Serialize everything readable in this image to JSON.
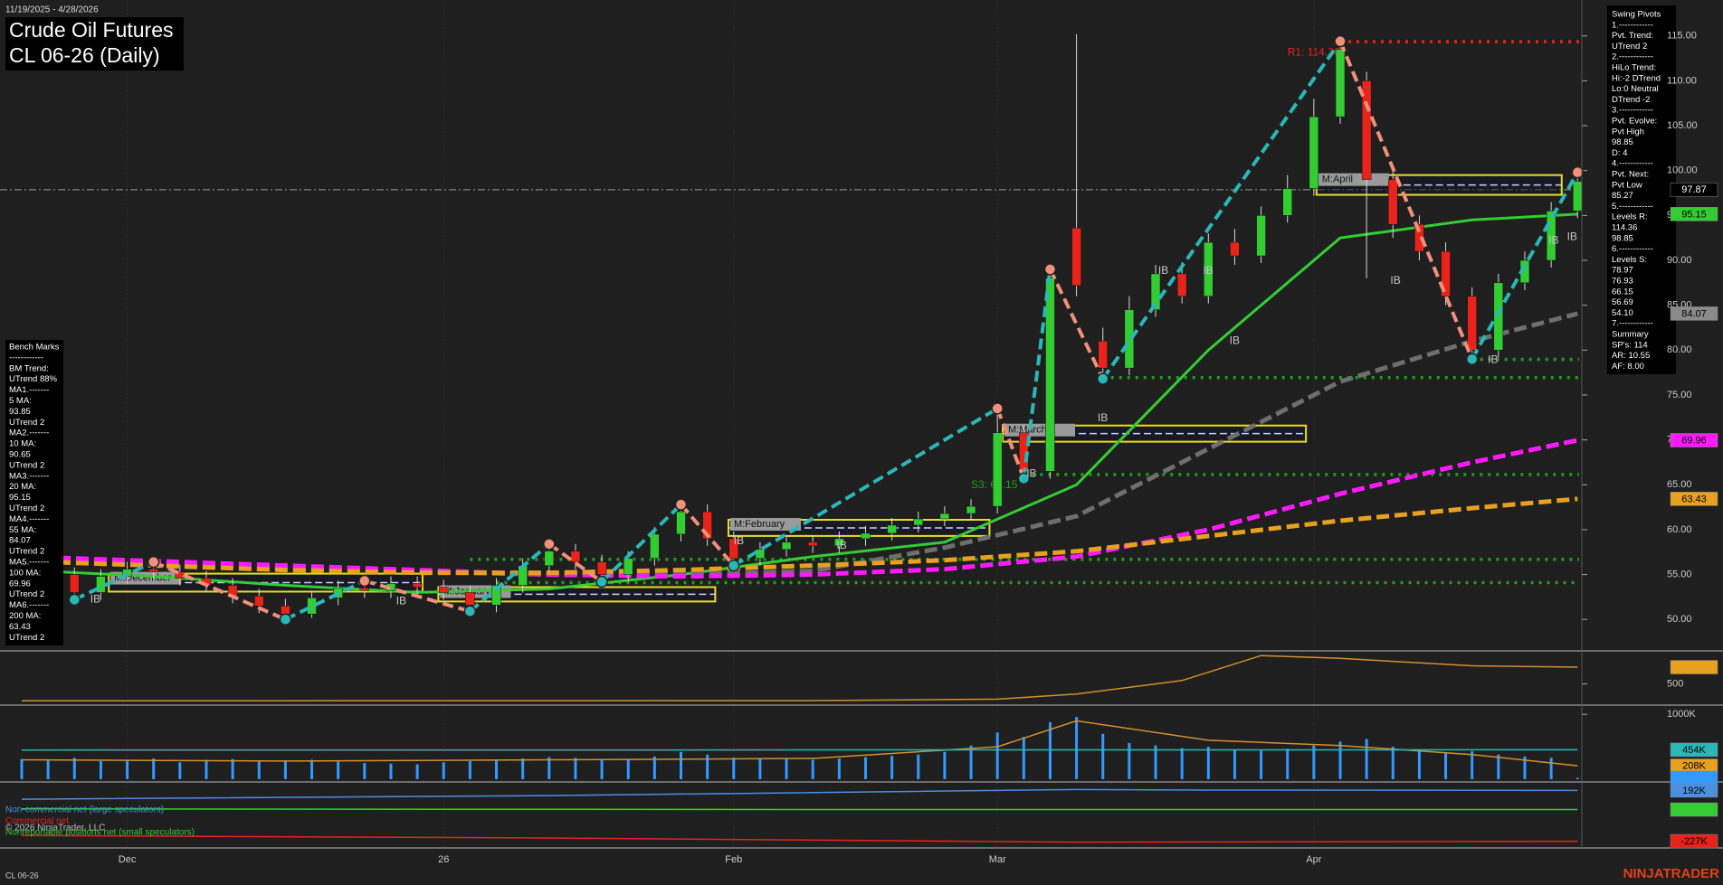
{
  "header": {
    "date_range": "11/19/2025 - 4/28/2026",
    "title": "Crude Oil Futures",
    "subtitle": "CL 06-26 (Daily)"
  },
  "swing_pivots_box": [
    "Swing Pivots",
    "1.------------",
    "Pvt. Trend:",
    "UTrend 2",
    "2.------------",
    "HiLo Trend:",
    "Hi:-2 DTrend",
    "Lo:0 Neutral",
    "DTrend -2",
    "3.------------",
    "Pvt. Evolve:",
    "Pvt High",
    "98.85",
    "D: 4",
    "4.------------",
    "Pvt. Next:",
    "Pvt Low",
    "85.27",
    "5.------------",
    "Levels R:",
    "114.36",
    "98.85",
    "6.------------",
    "Levels S:",
    "78.97",
    "76.93",
    "66.15",
    "56.69",
    "54.10",
    "7.------------",
    "Summary",
    "SP's: 114",
    "AR: 10.55",
    "AF: 8.00"
  ],
  "bench_marks_box": [
    "Bench Marks",
    "------------",
    "BM Trend:",
    "UTrend 88%",
    "MA1.-------",
    "5 MA:",
    "93.85",
    "UTrend 2",
    "MA2.-------",
    "10 MA:",
    "90.65",
    "UTrend 2",
    "MA3.-------",
    "20 MA:",
    "95.15",
    "UTrend 2",
    "MA4.-------",
    "55 MA:",
    "84.07",
    "UTrend 2",
    "MA5.-------",
    "100 MA:",
    "69.96",
    "UTrend 2",
    "MA6.-------",
    "200 MA:",
    "63.43",
    "UTrend 2"
  ],
  "chart_data": [
    {
      "type": "candlestick",
      "categories": [
        null,
        null,
        null,
        null,
        "Dec",
        null,
        null,
        null,
        null,
        null,
        null,
        null,
        null,
        null,
        null,
        null,
        "26",
        null,
        null,
        null,
        null,
        null,
        null,
        null,
        null,
        null,
        null,
        "Feb",
        null,
        null,
        null,
        null,
        null,
        null,
        null,
        null,
        null,
        "Mar",
        null,
        null,
        null,
        null,
        null,
        null,
        null,
        null,
        null,
        null,
        null,
        "Apr",
        null,
        null,
        null,
        null,
        null,
        null,
        null,
        null,
        null,
        null
      ],
      "open": [
        56.8,
        56.2,
        55.0,
        53.0,
        54.8,
        55.6,
        55.3,
        54.6,
        53.8,
        52.6,
        51.5,
        50.6,
        52.4,
        53.5,
        53.2,
        54.0,
        53.6,
        53.0,
        51.6,
        53.8,
        56.0,
        57.6,
        56.4,
        55.0,
        56.8,
        59.5,
        62.0,
        59.0,
        56.8,
        57.8,
        58.6,
        58.2,
        59.0,
        59.6,
        60.5,
        61.2,
        61.8,
        62.6,
        70.8,
        66.5,
        93.6,
        81.0,
        78.0,
        84.5,
        88.5,
        86.0,
        92.0,
        90.5,
        95.0,
        98.0,
        106.0,
        110.0,
        99.0,
        94.0,
        91.0,
        86.0,
        80.0,
        87.5,
        90.0,
        95.5
      ],
      "high": [
        57.6,
        57.0,
        55.8,
        55.6,
        56.4,
        56.4,
        56.1,
        55.4,
        54.6,
        53.4,
        52.3,
        53.2,
        54.3,
        54.3,
        54.8,
        54.8,
        54.4,
        53.8,
        54.6,
        56.8,
        58.4,
        58.4,
        57.2,
        57.6,
        60.3,
        62.8,
        62.8,
        59.8,
        58.6,
        59.4,
        59.4,
        59.8,
        60.4,
        61.3,
        62.0,
        62.6,
        63.4,
        73.5,
        71.6,
        89.0,
        115.2,
        82.5,
        86.0,
        89.5,
        89.8,
        93.0,
        93.5,
        96.0,
        99.5,
        108.0,
        114.4,
        111.0,
        100.5,
        95.0,
        92.0,
        87.0,
        88.5,
        91.0,
        96.5,
        99.8
      ],
      "low": [
        55.4,
        54.2,
        52.2,
        52.2,
        54.0,
        54.5,
        53.8,
        53.0,
        51.8,
        50.7,
        50.0,
        50.2,
        51.6,
        52.4,
        52.4,
        52.8,
        52.2,
        50.9,
        50.8,
        53.0,
        55.2,
        55.6,
        54.2,
        54.2,
        56.0,
        58.7,
        58.2,
        56.0,
        56.0,
        57.0,
        57.4,
        57.4,
        58.2,
        58.8,
        59.7,
        60.4,
        61.0,
        61.8,
        65.7,
        65.7,
        86.0,
        76.8,
        77.2,
        83.7,
        85.2,
        85.2,
        89.5,
        89.7,
        94.2,
        97.2,
        105.2,
        88.0,
        92.5,
        90.0,
        85.0,
        79.0,
        79.2,
        86.7,
        89.2,
        94.7
      ],
      "close": [
        56.2,
        55.0,
        53.0,
        54.8,
        55.6,
        55.3,
        54.6,
        53.8,
        52.6,
        51.5,
        50.6,
        52.4,
        53.5,
        53.2,
        54.0,
        53.6,
        53.0,
        51.6,
        53.8,
        56.0,
        57.6,
        56.4,
        55.0,
        56.8,
        59.5,
        62.0,
        59.0,
        56.8,
        57.8,
        58.6,
        58.2,
        59.0,
        59.6,
        60.5,
        61.2,
        61.8,
        62.6,
        70.8,
        66.5,
        88.0,
        87.2,
        78.0,
        84.5,
        88.5,
        86.0,
        92.0,
        90.5,
        95.0,
        98.0,
        106.0,
        113.5,
        99.0,
        94.0,
        91.0,
        86.0,
        80.0,
        87.5,
        90.0,
        95.5,
        98.8
      ],
      "up_color": "#33cc33",
      "down_color": "#e8231c",
      "ylim": [
        46.6,
        119
      ],
      "yticks": [
        {
          "value": 115,
          "label": "115.00"
        },
        {
          "value": 110,
          "label": "110.00"
        },
        {
          "value": 105,
          "label": "105.00"
        },
        {
          "value": 100,
          "label": "100.00"
        },
        {
          "value": 95,
          "label": "95.00"
        },
        {
          "value": 90,
          "label": "90.00"
        },
        {
          "value": 85,
          "label": "85.00"
        },
        {
          "value": 80,
          "label": "80.00"
        },
        {
          "value": 75,
          "label": "75.00"
        },
        {
          "value": 70,
          "label": "70.00"
        },
        {
          "value": 65,
          "label": "65.00"
        },
        {
          "value": 60,
          "label": "60.00"
        },
        {
          "value": 55,
          "label": "55.00"
        },
        {
          "value": 50,
          "label": "50.00"
        }
      ],
      "series": [
        {
          "color": "#33cc33",
          "style": "solid",
          "x": [
            0,
            5,
            10,
            15,
            20,
            25,
            30,
            35,
            40,
            45,
            50,
            55,
            59
          ],
          "values": [
            55.5,
            54.8,
            53.8,
            53.0,
            53.4,
            55.0,
            57.0,
            58.6,
            65.0,
            80.0,
            92.5,
            94.5,
            95.15
          ]
        },
        {
          "color": "#6e6e6e",
          "style": "dashed",
          "x": [
            0,
            5,
            10,
            15,
            20,
            25,
            30,
            35,
            40,
            45,
            50,
            55,
            59
          ],
          "values": [
            56.5,
            56.2,
            55.8,
            55.3,
            55.0,
            55.0,
            55.4,
            58.0,
            61.5,
            69.0,
            76.5,
            81.0,
            84.07
          ]
        },
        {
          "color": "#ff1aff",
          "style": "dashed",
          "x": [
            0,
            5,
            10,
            15,
            20,
            25,
            30,
            35,
            40,
            45,
            50,
            55,
            59
          ],
          "values": [
            57.0,
            56.5,
            56.0,
            55.5,
            55.0,
            54.8,
            55.0,
            55.6,
            57.0,
            60.0,
            64.0,
            67.5,
            69.96
          ]
        },
        {
          "color": "#e8a020",
          "style": "dashed",
          "x": [
            0,
            5,
            10,
            15,
            20,
            25,
            30,
            35,
            40,
            45,
            50,
            55,
            59
          ],
          "values": [
            56.5,
            56.0,
            55.5,
            55.2,
            55.2,
            55.5,
            56.0,
            56.6,
            57.6,
            59.3,
            61.0,
            62.4,
            63.43
          ]
        }
      ],
      "swing_pivots": {
        "up_color": "#2ab7b7",
        "down_color": "#f0907a",
        "x": [
          2,
          5,
          10,
          13,
          17,
          20,
          22,
          25,
          27,
          37,
          38,
          39,
          41,
          50,
          55,
          59
        ],
        "values": [
          52.2,
          56.4,
          50.0,
          54.3,
          50.9,
          58.4,
          54.2,
          62.8,
          56.0,
          73.5,
          65.7,
          89.0,
          76.8,
          114.4,
          79.0,
          99.8
        ]
      },
      "levels": [
        {
          "value": 114.36,
          "color": "#e8231c",
          "start": 50
        },
        {
          "value": 78.97,
          "color": "#1e9e1e",
          "start": 55
        },
        {
          "value": 76.93,
          "color": "#1e9e1e",
          "start": 41
        },
        {
          "value": 66.15,
          "color": "#1e9e1e",
          "start": 38
        },
        {
          "value": 56.69,
          "color": "#1e9e1e",
          "start": 17
        },
        {
          "value": 54.1,
          "color": "#1e9e1e",
          "start": 18
        }
      ],
      "level_labels": [
        {
          "text": "R1: 114.36",
          "value": 114.36,
          "x": 48,
          "color": "#e8231c"
        },
        {
          "text": "S3: 66.15",
          "value": 66.15,
          "x": 36,
          "color": "#1e9e1e"
        }
      ],
      "month_boxes": [
        {
          "label": "M:December",
          "start": 3.3,
          "end": 15.2,
          "low": 53.1,
          "high": 55.1
        },
        {
          "label": "M:January",
          "start": 15.8,
          "end": 26.3,
          "low": 52.0,
          "high": 53.6
        },
        {
          "label": "M:February",
          "start": 26.8,
          "end": 36.7,
          "low": 59.3,
          "high": 61.1
        },
        {
          "label": "M:March",
          "start": 37.2,
          "end": 48.7,
          "low": 69.8,
          "high": 71.6
        },
        {
          "label": "M:April",
          "start": 49.1,
          "end": 58.4,
          "low": 97.3,
          "high": 99.5
        }
      ],
      "annotations": [
        {
          "text": "IB",
          "x": 2.6,
          "y": 52.2
        },
        {
          "text": "IB",
          "x": 14.2,
          "y": 52.0
        },
        {
          "text": "IB",
          "x": 27,
          "y": 58.7
        },
        {
          "text": "IB",
          "x": 30.9,
          "y": 58.2
        },
        {
          "text": "IB",
          "x": 38.1,
          "y": 66.2
        },
        {
          "text": "IB",
          "x": 40.8,
          "y": 72.4
        },
        {
          "text": "IB",
          "x": 43.1,
          "y": 88.8
        },
        {
          "text": "IB",
          "x": 44.8,
          "y": 88.8
        },
        {
          "text": "IB",
          "x": 45.8,
          "y": 81.0
        },
        {
          "text": "IB",
          "x": 51.9,
          "y": 87.7
        },
        {
          "text": "IB",
          "x": 55.6,
          "y": 78.9
        },
        {
          "text": "IB",
          "x": 57.9,
          "y": 92.2
        },
        {
          "text": "IB",
          "x": 58.6,
          "y": 92.6
        }
      ],
      "current_price": 97.87,
      "price_tags": [
        {
          "value": 95.15,
          "color": "#33cc33"
        },
        {
          "value": 84.07,
          "color": "#8a8a8a"
        },
        {
          "value": 69.96,
          "color": "#ff1aff"
        },
        {
          "value": 63.43,
          "color": "#e8a020"
        }
      ]
    },
    {
      "type": "line",
      "color": "#d4902a",
      "x": [
        0,
        30,
        37,
        40,
        44,
        47,
        50,
        55,
        59
      ],
      "values": [
        200,
        205,
        230,
        320,
        560,
        1000,
        950,
        820,
        795
      ],
      "ylim": [
        157,
        1051
      ],
      "yticks": [
        500
      ],
      "tags": [
        {
          "value": 795,
          "color": "#e8a020"
        }
      ]
    },
    {
      "type": "bar",
      "color": "#3399ff",
      "values": [
        310000,
        290000,
        330000,
        280000,
        300000,
        320000,
        260000,
        300000,
        310000,
        280000,
        290000,
        300000,
        270000,
        250000,
        240000,
        230000,
        260000,
        280000,
        300000,
        320000,
        340000,
        330000,
        310000,
        300000,
        350000,
        420000,
        380000,
        330000,
        320000,
        310000,
        300000,
        320000,
        340000,
        360000,
        380000,
        420000,
        520000,
        720000,
        650000,
        880000,
        960000,
        700000,
        560000,
        520000,
        480000,
        500000,
        460000,
        440000,
        470000,
        520000,
        580000,
        620000,
        500000,
        440000,
        400000,
        430000,
        380000,
        350000,
        330000,
        21010
      ],
      "ylim": [
        0,
        1100000
      ],
      "yticks": [
        {
          "value": 1000000,
          "label": "1000K"
        }
      ],
      "series": [
        {
          "color": "#d4902a",
          "x": [
            0,
            10,
            20,
            30,
            37,
            40,
            45,
            50,
            55,
            59
          ],
          "values": [
            300000,
            280000,
            300000,
            320000,
            500000,
            900000,
            600000,
            520000,
            380000,
            208000
          ]
        },
        {
          "color": "#2ab7b7",
          "x": [
            0,
            59
          ],
          "values": [
            450000,
            454000
          ]
        }
      ],
      "tags": [
        {
          "value": 454000,
          "label": "454K",
          "color": "#2ab7b7"
        },
        {
          "value": 208000,
          "label": "208K",
          "color": "#e8a020"
        },
        {
          "value": 21010,
          "color": "#3399ff"
        }
      ]
    },
    {
      "type": "line",
      "ylim": [
        -260000,
        240000
      ],
      "series": [
        {
          "name": "Non-commercial net (large speculators)",
          "color": "#4a8fe0",
          "x": [
            0,
            20,
            40,
            45,
            59
          ],
          "values": [
            120000,
            150000,
            200000,
            195000,
            192000
          ]
        },
        {
          "name": "Commercial net",
          "color": "#e8231c",
          "x": [
            0,
            20,
            40,
            59
          ],
          "values": [
            -180000,
            -200000,
            -235000,
            -227000
          ]
        },
        {
          "name": "Nonreportable positions net (small speculators)",
          "color": "#33cc33",
          "x": [
            0,
            30,
            59
          ],
          "values": [
            40000,
            35000,
            34409
          ]
        }
      ],
      "tags": [
        {
          "value": 192000,
          "label": "192K",
          "color": "#4a8fe0"
        },
        {
          "value": 34409,
          "color": "#33cc33"
        },
        {
          "value": -227000,
          "label": "-227K",
          "color": "#e8231c"
        }
      ]
    }
  ],
  "footer": {
    "copyright": "© 2026 NinjaTrader, LLC",
    "symbol": "CL 06-26",
    "brand": "NINJATRADER"
  }
}
